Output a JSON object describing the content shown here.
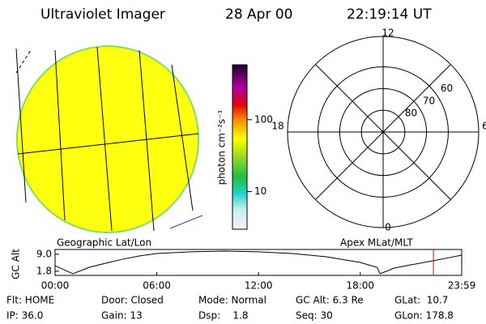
{
  "header": {
    "title": "Ultraviolet Imager",
    "date": "28 Apr 00",
    "time": "22:19:14 UT"
  },
  "image": {
    "label": "Geographic Lat/Lon"
  },
  "colorbar": {
    "label": "photon cm⁻²s⁻¹",
    "lim": [
      3,
      580
    ],
    "log": true,
    "ticks": [
      10,
      100
    ]
  },
  "polar": {
    "label": "Apex MLat/MLT",
    "rlim": [
      90,
      46
    ],
    "hour_labels": [
      12,
      18,
      6,
      0
    ],
    "lat_labels": [
      60,
      70,
      80
    ]
  },
  "chart_data": {
    "type": "line",
    "ylabel": "GC Alt",
    "x": [
      0,
      63,
      120,
      180,
      240,
      300,
      360,
      480,
      600,
      720,
      840,
      960,
      1080,
      1140,
      1150,
      1200,
      1260,
      1320,
      1380,
      1439
    ],
    "values": [
      4.1,
      0.7,
      3.4,
      5.2,
      6.9,
      8.3,
      9.3,
      10,
      10.3,
      10,
      9.3,
      7.9,
      5.5,
      3.4,
      0.7,
      3.1,
      4.5,
      5.8,
      7.2,
      8.6
    ],
    "color": "#000000",
    "xlim": [
      0,
      1439
    ],
    "xticks": [
      {
        "value": 0,
        "label": "00:00"
      },
      {
        "value": 360,
        "label": "06:00"
      },
      {
        "value": 720,
        "label": "12:00"
      },
      {
        "value": 1080,
        "label": "18:00"
      },
      {
        "value": 1439,
        "label": "23:59"
      }
    ],
    "ylim": [
      0,
      11
    ],
    "yticks": [
      {
        "value": 1.8,
        "label": "1.8"
      },
      {
        "value": 9,
        "label": "9.0"
      }
    ],
    "marker": 1339,
    "marker_color": "#e00000"
  },
  "info": {
    "rows": [
      [
        "Flt: HOME",
        "Door: Closed",
        "Mode: Normal",
        "GC Alt: 6.3 Re",
        "GLat:  10.7"
      ],
      [
        "IP: 36.0",
        "Gain: 13",
        "Dsp:    1.8",
        "Seq: 30",
        "GLon: 178.8"
      ]
    ]
  }
}
